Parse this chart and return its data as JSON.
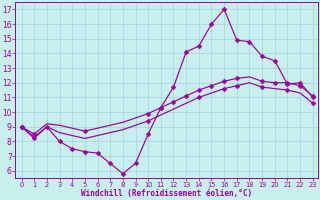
{
  "xlabel": "Windchill (Refroidissement éolien,°C)",
  "bg_color": "#c8eeee",
  "grid_color": "#a4d4d4",
  "line_color": "#990099",
  "xlim_min": -0.5,
  "xlim_max": 23.4,
  "ylim_min": 5.5,
  "ylim_max": 17.5,
  "xticks": [
    0,
    1,
    2,
    3,
    4,
    5,
    6,
    7,
    8,
    9,
    10,
    11,
    12,
    13,
    14,
    15,
    16,
    17,
    18,
    19,
    20,
    21,
    22,
    23
  ],
  "yticks": [
    6,
    7,
    8,
    9,
    10,
    11,
    12,
    13,
    14,
    15,
    16,
    17
  ],
  "line1_x": [
    0,
    1,
    2,
    3,
    4,
    5,
    6,
    7,
    8,
    9,
    10,
    11,
    12,
    13,
    14,
    15,
    16,
    17,
    18,
    19,
    20,
    21,
    22,
    23
  ],
  "line1_y": [
    9.0,
    8.2,
    9.0,
    8.0,
    7.5,
    7.3,
    7.2,
    6.5,
    5.8,
    6.5,
    8.5,
    10.3,
    11.7,
    14.1,
    14.5,
    16.0,
    17.0,
    14.9,
    14.8,
    13.8,
    13.5,
    11.9,
    12.0,
    11.0
  ],
  "line2_x": [
    0,
    1,
    2,
    3,
    4,
    5,
    6,
    7,
    8,
    9,
    10,
    11,
    12,
    13,
    14,
    15,
    16,
    17,
    18,
    19,
    20,
    21,
    22,
    23
  ],
  "line2_y": [
    9.0,
    8.5,
    9.2,
    9.1,
    8.9,
    8.7,
    8.9,
    9.1,
    9.3,
    9.6,
    9.9,
    10.3,
    10.7,
    11.1,
    11.5,
    11.8,
    12.1,
    12.3,
    12.4,
    12.1,
    12.0,
    12.0,
    11.8,
    11.1
  ],
  "line3_x": [
    0,
    1,
    2,
    3,
    4,
    5,
    6,
    7,
    8,
    9,
    10,
    11,
    12,
    13,
    14,
    15,
    16,
    17,
    18,
    19,
    20,
    21,
    22,
    23
  ],
  "line3_y": [
    9.0,
    8.3,
    9.0,
    8.6,
    8.4,
    8.2,
    8.4,
    8.6,
    8.8,
    9.1,
    9.4,
    9.8,
    10.2,
    10.6,
    11.0,
    11.3,
    11.6,
    11.8,
    12.0,
    11.7,
    11.6,
    11.5,
    11.3,
    10.6
  ],
  "line1_marker_x": [
    0,
    1,
    2,
    3,
    4,
    5,
    6,
    7,
    8,
    9,
    10,
    11,
    12,
    13,
    14,
    15,
    16,
    17,
    18,
    19,
    20,
    21,
    22,
    23
  ],
  "line1_marker_y": [
    9.0,
    8.2,
    9.0,
    8.0,
    7.5,
    7.3,
    7.2,
    6.5,
    5.8,
    6.5,
    8.5,
    10.3,
    11.7,
    14.1,
    14.5,
    16.0,
    17.0,
    14.9,
    14.8,
    13.8,
    13.5,
    11.9,
    12.0,
    11.0
  ],
  "line2_marker_x": [
    0,
    1,
    5,
    10,
    11,
    12,
    13,
    14,
    15,
    16,
    17,
    19,
    20,
    21,
    22,
    23
  ],
  "line2_marker_y": [
    9.0,
    8.5,
    8.7,
    9.9,
    10.3,
    10.7,
    11.1,
    11.5,
    11.8,
    12.1,
    12.3,
    12.1,
    12.0,
    12.0,
    11.8,
    11.1
  ],
  "line3_marker_x": [
    0,
    10,
    14,
    16,
    17,
    19,
    21,
    23
  ],
  "line3_marker_y": [
    9.0,
    9.4,
    11.0,
    11.6,
    11.8,
    11.7,
    11.5,
    10.6
  ],
  "markersize": 2.5,
  "linewidth": 0.85,
  "xlabel_fontsize": 5.5,
  "tick_fontsize_x": 4.8,
  "tick_fontsize_y": 5.5
}
